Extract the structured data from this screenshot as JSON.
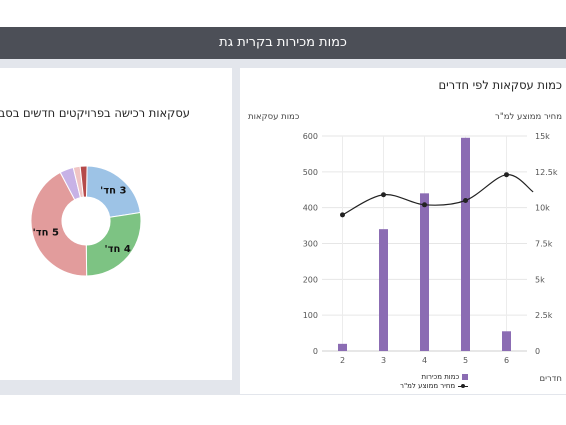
{
  "header": {
    "title": "כמות מכירות בקרית גת"
  },
  "left_panel": {
    "title": "עסקאות רכישה בפרויקטים חדשים בסביבה"
  },
  "right_panel": {
    "title": "כמות עסקאות לפי חדרים",
    "left_axis_title": "כמות עסקאות",
    "right_axis_title": "מחיר ממוצע למ\"ר",
    "x_axis_title": "חדרים"
  },
  "legend": {
    "bar_label": "כמות מכירות",
    "line_label": "מחיר ממוצע למ\"ר"
  },
  "colors": {
    "bar": "#8b6cb3",
    "line": "#222222",
    "header": "#4c4f57"
  },
  "chart_data": [
    {
      "type": "bar",
      "title": "כמות עסקאות לפי חדרים",
      "xlabel": "חדרים",
      "ylabel": "כמות עסקאות",
      "y2label": "מחיר ממוצע למ\"ר",
      "categories": [
        "2",
        "3",
        "4",
        "5",
        "6"
      ],
      "ylim": [
        0,
        600
      ],
      "yticks": [
        "0",
        "100",
        "200",
        "300",
        "400",
        "500",
        "600"
      ],
      "y2lim": [
        0,
        15000
      ],
      "y2ticks": [
        "0",
        "2.5k",
        "5k",
        "7.5k",
        "10k",
        "12.5k",
        "15k"
      ],
      "grid": true,
      "series": [
        {
          "name": "כמות מכירות",
          "type": "bar",
          "axis": "left",
          "values": [
            20,
            340,
            440,
            595,
            55
          ]
        },
        {
          "name": "מחיר ממוצע למ\"ר",
          "type": "line",
          "axis": "right",
          "values": [
            9500,
            10900,
            10200,
            10500,
            12300
          ]
        }
      ]
    },
    {
      "type": "pie",
      "title": "עסקאות רכישה בפרויקטים חדשים בסביבה",
      "slices": [
        {
          "label": "3 חד'",
          "value": 22,
          "color": "#9dc3e6"
        },
        {
          "label": "4 חד'",
          "value": 27,
          "color": "#7dc383"
        },
        {
          "label": "5 חד'",
          "value": 42,
          "color": "#e29c9c"
        },
        {
          "label": "",
          "value": 4,
          "color": "#c7b2e6"
        },
        {
          "label": "",
          "value": 2,
          "color": "#f0c4c4"
        },
        {
          "label": "",
          "value": 2,
          "color": "#b54a4a"
        }
      ]
    }
  ]
}
